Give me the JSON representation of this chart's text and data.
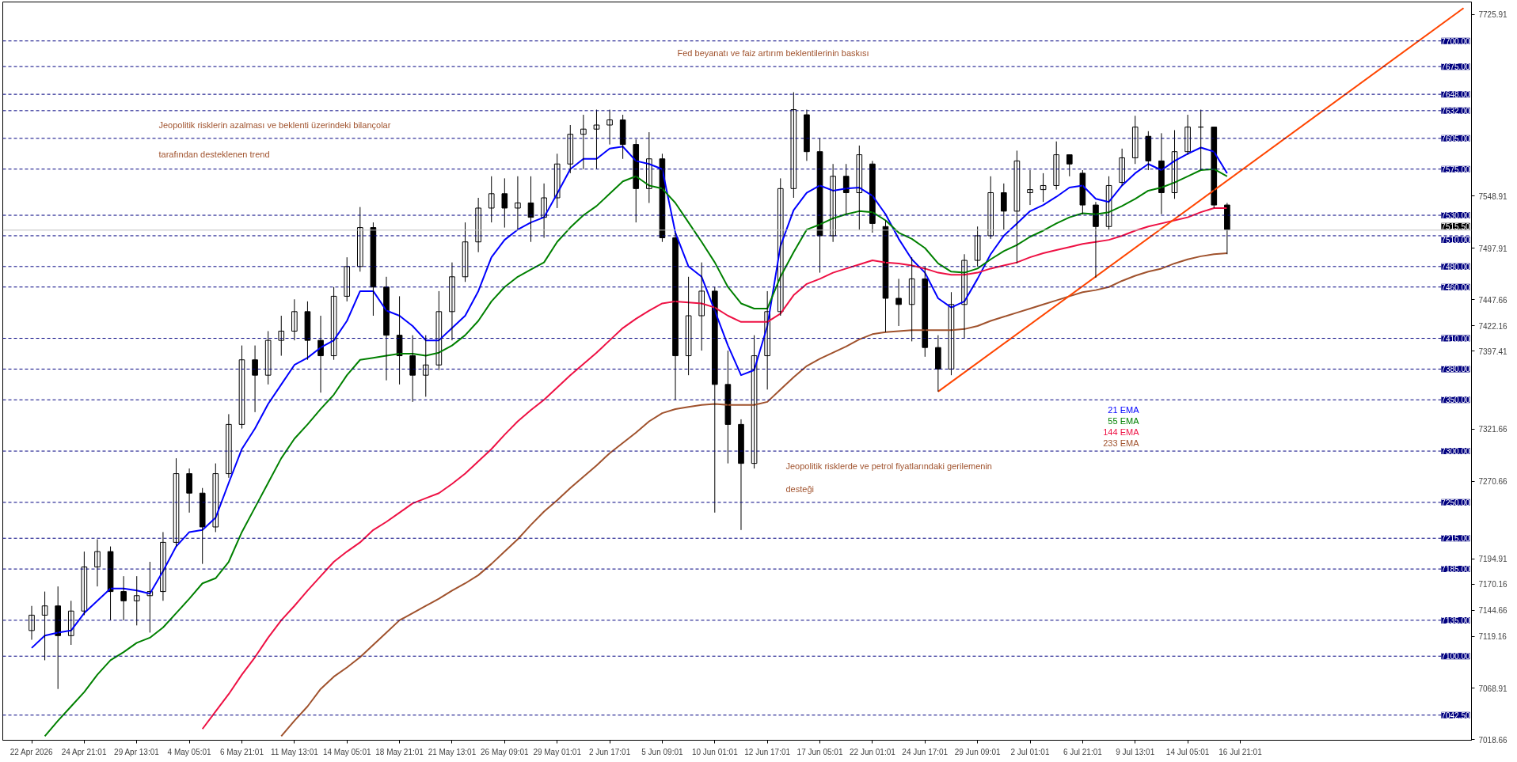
{
  "chart_data": {
    "type": "candlestick",
    "color": "#000000",
    "categories": [
      "22 Apr 2026",
      null,
      null,
      null,
      "24 Apr 21:01",
      null,
      null,
      null,
      "29 Apr 13:01",
      null,
      null,
      null,
      "4 May 05:01",
      null,
      null,
      null,
      "6 May 21:01",
      null,
      null,
      null,
      "11 May 13:01",
      null,
      null,
      null,
      "14 May 05:01",
      null,
      null,
      null,
      "18 May 21:01",
      null,
      null,
      null,
      "21 May 13:01",
      null,
      null,
      null,
      "26 May 09:01",
      null,
      null,
      null,
      "29 May 01:01",
      null,
      null,
      null,
      "2 Jun 17:01",
      null,
      null,
      null,
      "5 Jun 09:01",
      null,
      null,
      null,
      "10 Jun 01:01",
      null,
      null,
      null,
      "12 Jun 17:01",
      null,
      null,
      null,
      "17 Jun 05:01",
      null,
      null,
      null,
      "22 Jun 01:01",
      null,
      null,
      null,
      "24 Jun 17:01",
      null,
      null,
      null,
      "29 Jun 09:01",
      null,
      null,
      null,
      "2 Jul 01:01",
      null,
      null,
      null,
      "6 Jul 21:01",
      null,
      null,
      null,
      "9 Jul 13:01",
      null,
      null,
      null,
      "14 Jul 05:01",
      null,
      null,
      null,
      "16 Jul 21:01",
      null,
      null,
      null,
      null,
      null,
      null,
      null,
      null,
      null,
      null,
      null,
      null,
      null,
      null,
      null,
      null,
      null
    ],
    "ohlc": [
      [
        7125,
        7149,
        7116,
        7140
      ],
      [
        7140,
        7163,
        7096,
        7149
      ],
      [
        7149,
        7168,
        7068,
        7120
      ],
      [
        7120,
        7154,
        7111,
        7144
      ],
      [
        7144,
        7202,
        7140,
        7187
      ],
      [
        7187,
        7214,
        7168,
        7202
      ],
      [
        7202,
        7207,
        7135,
        7163
      ],
      [
        7163,
        7178,
        7135,
        7154
      ],
      [
        7154,
        7178,
        7130,
        7159
      ],
      [
        7159,
        7192,
        7123,
        7163
      ],
      [
        7163,
        7221,
        7154,
        7211
      ],
      [
        7211,
        7293,
        7207,
        7278
      ],
      [
        7278,
        7283,
        7240,
        7259
      ],
      [
        7259,
        7264,
        7190,
        7226
      ],
      [
        7226,
        7288,
        7221,
        7278
      ],
      [
        7278,
        7336,
        7274,
        7326
      ],
      [
        7326,
        7403,
        7322,
        7389
      ],
      [
        7389,
        7403,
        7338,
        7374
      ],
      [
        7374,
        7417,
        7365,
        7408
      ],
      [
        7408,
        7432,
        7393,
        7417
      ],
      [
        7417,
        7448,
        7408,
        7436
      ],
      [
        7436,
        7446,
        7389,
        7408
      ],
      [
        7408,
        7432,
        7357,
        7393
      ],
      [
        7393,
        7460,
        7389,
        7451
      ],
      [
        7451,
        7489,
        7446,
        7480
      ],
      [
        7480,
        7538,
        7475,
        7518
      ],
      [
        7518,
        7523,
        7432,
        7460
      ],
      [
        7460,
        7470,
        7369,
        7413
      ],
      [
        7413,
        7451,
        7365,
        7393
      ],
      [
        7393,
        7413,
        7348,
        7374
      ],
      [
        7374,
        7413,
        7353,
        7384
      ],
      [
        7384,
        7456,
        7379,
        7436
      ],
      [
        7436,
        7484,
        7408,
        7470
      ],
      [
        7470,
        7523,
        7465,
        7504
      ],
      [
        7504,
        7547,
        7494,
        7537
      ],
      [
        7537,
        7568,
        7523,
        7551
      ],
      [
        7551,
        7566,
        7518,
        7537
      ],
      [
        7537,
        7568,
        7516,
        7542
      ],
      [
        7542,
        7568,
        7504,
        7528
      ],
      [
        7528,
        7561,
        7508,
        7547
      ],
      [
        7547,
        7590,
        7537,
        7580
      ],
      [
        7580,
        7618,
        7571,
        7609
      ],
      [
        7609,
        7628,
        7575,
        7614
      ],
      [
        7614,
        7633,
        7575,
        7618
      ],
      [
        7618,
        7633,
        7599,
        7623
      ],
      [
        7623,
        7628,
        7585,
        7599
      ],
      [
        7599,
        7604,
        7523,
        7556
      ],
      [
        7556,
        7611,
        7542,
        7585
      ],
      [
        7585,
        7590,
        7504,
        7508
      ],
      [
        7508,
        7513,
        7350,
        7393
      ],
      [
        7393,
        7470,
        7374,
        7432
      ],
      [
        7432,
        7484,
        7398,
        7456
      ],
      [
        7456,
        7460,
        7240,
        7365
      ],
      [
        7365,
        7398,
        7288,
        7326
      ],
      [
        7326,
        7331,
        7223,
        7288
      ],
      [
        7288,
        7413,
        7283,
        7393
      ],
      [
        7393,
        7456,
        7360,
        7436
      ],
      [
        7436,
        7566,
        7432,
        7556
      ],
      [
        7556,
        7650,
        7547,
        7633
      ],
      [
        7628,
        7633,
        7583,
        7592
      ],
      [
        7592,
        7605,
        7474,
        7510
      ],
      [
        7510,
        7580,
        7504,
        7568
      ],
      [
        7568,
        7580,
        7531,
        7552
      ],
      [
        7552,
        7598,
        7516,
        7589
      ],
      [
        7580,
        7583,
        7513,
        7522
      ],
      [
        7519,
        7525,
        7416,
        7449
      ],
      [
        7449,
        7468,
        7422,
        7443
      ],
      [
        7443,
        7489,
        7407,
        7468
      ],
      [
        7468,
        7480,
        7392,
        7401
      ],
      [
        7401,
        7413,
        7358,
        7380
      ],
      [
        7380,
        7455,
        7374,
        7443
      ],
      [
        7443,
        7492,
        7410,
        7486
      ],
      [
        7486,
        7519,
        7480,
        7510
      ],
      [
        7510,
        7568,
        7507,
        7552
      ],
      [
        7552,
        7561,
        7516,
        7534
      ],
      [
        7534,
        7593,
        7483,
        7583
      ],
      [
        7552,
        7574,
        7540,
        7555
      ],
      [
        7555,
        7571,
        7543,
        7559
      ],
      [
        7559,
        7602,
        7555,
        7589
      ],
      [
        7589,
        7589,
        7568,
        7580
      ],
      [
        7571,
        7574,
        7531,
        7540
      ],
      [
        7540,
        7543,
        7469,
        7519
      ],
      [
        7519,
        7568,
        7516,
        7559
      ],
      [
        7562,
        7595,
        7559,
        7586
      ],
      [
        7586,
        7627,
        7580,
        7616
      ],
      [
        7607,
        7612,
        7574,
        7583
      ],
      [
        7583,
        7610,
        7531,
        7552
      ],
      [
        7552,
        7613,
        7546,
        7592
      ],
      [
        7592,
        7628,
        7589,
        7616
      ],
      [
        7616,
        7633,
        7574,
        7616
      ],
      [
        7616,
        7616,
        7537,
        7540
      ],
      [
        7540,
        7542,
        7492,
        7516
      ],
      null,
      null,
      null,
      null,
      null,
      null,
      null,
      null,
      null,
      null,
      null,
      null,
      null,
      null,
      null,
      null,
      null,
      null
    ],
    "series": [
      {
        "name": "21 EMA",
        "type": "line",
        "color": "#0000ff",
        "values": [
          7108,
          7120,
          7123,
          7125,
          7142,
          7154,
          7166,
          7166,
          7164,
          7161,
          7183,
          7207,
          7221,
          7223,
          7235,
          7269,
          7302,
          7322,
          7346,
          7365,
          7384,
          7391,
          7401,
          7408,
          7427,
          7456,
          7456,
          7437,
          7432,
          7422,
          7408,
          7408,
          7420,
          7432,
          7456,
          7489,
          7506,
          7516,
          7523,
          7528,
          7551,
          7575,
          7585,
          7585,
          7595,
          7597,
          7583,
          7580,
          7575,
          7513,
          7480,
          7470,
          7437,
          7403,
          7374,
          7379,
          7422,
          7500,
          7535,
          7552,
          7559,
          7554,
          7556,
          7557,
          7549,
          7531,
          7507,
          7487,
          7474,
          7449,
          7440,
          7446,
          7468,
          7492,
          7510,
          7522,
          7534,
          7540,
          7548,
          7557,
          7559,
          7546,
          7543,
          7559,
          7571,
          7580,
          7574,
          7583,
          7590,
          7596,
          7592,
          7571,
          null,
          null,
          null,
          null,
          null,
          null,
          null,
          null,
          null,
          null,
          null,
          null,
          null,
          null,
          null,
          null,
          null,
          null
        ]
      },
      {
        "name": "55 EMA",
        "type": "line",
        "color": "#008000",
        "values": [
          null,
          7022,
          7037,
          7051,
          7065,
          7082,
          7096,
          7104,
          7113,
          7118,
          7128,
          7142,
          7156,
          7171,
          7176,
          7192,
          7221,
          7245,
          7269,
          7293,
          7312,
          7326,
          7341,
          7355,
          7374,
          7389,
          7391,
          7393,
          7395,
          7395,
          7393,
          7396,
          7403,
          7413,
          7427,
          7446,
          7460,
          7470,
          7477,
          7484,
          7504,
          7518,
          7530,
          7539,
          7551,
          7563,
          7568,
          7559,
          7556,
          7542,
          7523,
          7504,
          7484,
          7460,
          7444,
          7439,
          7439,
          7470,
          7494,
          7516,
          7521,
          7527,
          7531,
          7534,
          7533,
          7525,
          7513,
          7507,
          7498,
          7483,
          7475,
          7474,
          7478,
          7487,
          7495,
          7501,
          7509,
          7515,
          7522,
          7528,
          7532,
          7531,
          7533,
          7539,
          7546,
          7554,
          7557,
          7562,
          7568,
          7574,
          7575,
          7568,
          null,
          null,
          null,
          null,
          null,
          null,
          null,
          null,
          null,
          null,
          null,
          null,
          null,
          null,
          null,
          null,
          null,
          null
        ]
      },
      {
        "name": "144 EMA",
        "type": "line",
        "color": "#ee1144",
        "values": [
          null,
          null,
          null,
          null,
          null,
          null,
          null,
          null,
          null,
          null,
          null,
          null,
          null,
          7029,
          7046,
          7063,
          7082,
          7099,
          7118,
          7135,
          7149,
          7164,
          7178,
          7192,
          7202,
          7211,
          7223,
          7231,
          7240,
          7249,
          7254,
          7259,
          7268,
          7278,
          7290,
          7302,
          7316,
          7329,
          7340,
          7350,
          7362,
          7374,
          7385,
          7396,
          7408,
          7420,
          7429,
          7437,
          7444,
          7446,
          7445,
          7444,
          7440,
          7432,
          7426,
          7426,
          7426,
          7434,
          7452,
          7463,
          7468,
          7474,
          7478,
          7482,
          7486,
          7484,
          7483,
          7481,
          7478,
          7474,
          7472,
          7472,
          7474,
          7478,
          7481,
          7484,
          7489,
          7493,
          7496,
          7499,
          7502,
          7504,
          7506,
          7510,
          7515,
          7519,
          7522,
          7525,
          7528,
          7533,
          7537,
          7537,
          null,
          null,
          null,
          null,
          null,
          null,
          null,
          null,
          null,
          null,
          null,
          null,
          null,
          null,
          null,
          null,
          null,
          null
        ]
      },
      {
        "name": "233 EMA",
        "type": "line",
        "color": "#a0522d",
        "values": [
          null,
          null,
          null,
          null,
          null,
          null,
          null,
          null,
          null,
          null,
          null,
          null,
          null,
          null,
          null,
          null,
          null,
          null,
          null,
          7022,
          7037,
          7051,
          7068,
          7080,
          7089,
          7099,
          7111,
          7123,
          7135,
          7142,
          7149,
          7156,
          7164,
          7171,
          7179,
          7190,
          7202,
          7214,
          7228,
          7241,
          7252,
          7264,
          7275,
          7286,
          7298,
          7308,
          7318,
          7329,
          7337,
          7341,
          7343,
          7345,
          7346,
          7345,
          7345,
          7345,
          7348,
          7360,
          7372,
          7383,
          7390,
          7396,
          7402,
          7409,
          7414,
          7416,
          7417,
          7418,
          7418,
          7418,
          7418,
          7419,
          7422,
          7427,
          7431,
          7435,
          7439,
          7443,
          7447,
          7451,
          7455,
          7457,
          7460,
          7466,
          7471,
          7475,
          7478,
          7483,
          7487,
          7490,
          7492,
          7493,
          null,
          null,
          null,
          null,
          null,
          null,
          null,
          null,
          null,
          null,
          null,
          null,
          null,
          null,
          null,
          null,
          null,
          null
        ]
      },
      {
        "type": "line",
        "color": "#ff4500",
        "values": [
          null,
          null,
          null,
          null,
          null,
          null,
          null,
          null,
          null,
          null,
          null,
          null,
          null,
          null,
          null,
          null,
          null,
          null,
          null,
          null,
          null,
          null,
          null,
          null,
          null,
          null,
          null,
          null,
          null,
          null,
          null,
          null,
          null,
          null,
          null,
          null,
          null,
          null,
          null,
          null,
          null,
          null,
          null,
          null,
          null,
          null,
          null,
          null,
          null,
          null,
          null,
          null,
          null,
          null,
          null,
          null,
          null,
          null,
          null,
          null,
          null,
          null,
          null,
          null,
          null,
          null,
          null,
          null,
          null,
          7358,
          null,
          null,
          null,
          null,
          null,
          null,
          null,
          null,
          null,
          null,
          null,
          null,
          null,
          null,
          null,
          null,
          null,
          null,
          null,
          null,
          null,
          null,
          null,
          null,
          null,
          null,
          null,
          null,
          null,
          null,
          null,
          null,
          null,
          null,
          null,
          null,
          null,
          null,
          null,
          7732
        ]
      }
    ],
    "ylim": [
      7018,
      7738
    ],
    "yticks": [
      7725.91,
      7548.91,
      7497.91,
      7447.66,
      7422.16,
      7397.41,
      7321.66,
      7270.66,
      7194.91,
      7170.16,
      7144.66,
      7119.16,
      7068.91,
      7018.66
    ],
    "ref_lines": [
      {
        "axis": "y",
        "value": 7700,
        "label": "7700.00",
        "color": "#000080",
        "line_style": "dashed"
      },
      {
        "axis": "y",
        "value": 7675,
        "label": "7675.00",
        "color": "#000080",
        "line_style": "dashed"
      },
      {
        "axis": "y",
        "value": 7648,
        "label": "7648.00",
        "color": "#000080",
        "line_style": "dashed"
      },
      {
        "axis": "y",
        "value": 7632,
        "label": "7632.00",
        "color": "#000080",
        "line_style": "dashed"
      },
      {
        "axis": "y",
        "value": 7605,
        "label": "7605.00",
        "color": "#000080",
        "line_style": "dashed"
      },
      {
        "axis": "y",
        "value": 7575,
        "label": "7575.00",
        "color": "#000080",
        "line_style": "dashed"
      },
      {
        "axis": "y",
        "value": 7530,
        "label": "7530.00",
        "color": "#000080",
        "line_style": "dashed"
      },
      {
        "axis": "y",
        "value": 7515.5,
        "label": "7515.50",
        "color": "#c0c0c0",
        "line_style": "solid"
      },
      {
        "axis": "y",
        "value": 7510,
        "label": "7510.00",
        "color": "#000080",
        "line_style": "dashed"
      },
      {
        "axis": "y",
        "value": 7480,
        "label": "7480.00",
        "color": "#000080",
        "line_style": "dashed"
      },
      {
        "axis": "y",
        "value": 7460,
        "label": "7460.00",
        "color": "#000080",
        "line_style": "dashed"
      },
      {
        "axis": "y",
        "value": 7410,
        "label": "7410.00",
        "color": "#000080",
        "line_style": "dashed"
      },
      {
        "axis": "y",
        "value": 7380,
        "label": "7380.00",
        "color": "#000080",
        "line_style": "dashed"
      },
      {
        "axis": "y",
        "value": 7350,
        "label": "7350.00",
        "color": "#000080",
        "line_style": "dashed"
      },
      {
        "axis": "y",
        "value": 7300,
        "label": "7300.00",
        "color": "#000080",
        "line_style": "dashed"
      },
      {
        "axis": "y",
        "value": 7250,
        "label": "7250.00",
        "color": "#000080",
        "line_style": "dashed"
      },
      {
        "axis": "y",
        "value": 7215,
        "label": "7215.00",
        "color": "#000080",
        "line_style": "dashed"
      },
      {
        "axis": "y",
        "value": 7185,
        "label": "7185.00",
        "color": "#000080",
        "line_style": "dashed"
      },
      {
        "axis": "y",
        "value": 7135,
        "label": "7135.00",
        "color": "#000080",
        "line_style": "dashed"
      },
      {
        "axis": "y",
        "value": 7100,
        "label": "7100.00",
        "color": "#000080",
        "line_style": "dashed"
      },
      {
        "axis": "y",
        "value": 7042.5,
        "label": "7042.50",
        "color": "#000080",
        "line_style": "dashed"
      }
    ],
    "annotations": [
      "Fed beyanatı ve faiz artırım beklentilerinin baskısı",
      "Jeopolitik risklerin azalması ve beklenti üzerindeki bilançolar",
      "tarafından desteklenen trend",
      "Jeopolitik risklerde ve petrol fiyatlarındaki gerilemenin",
      "desteği"
    ],
    "legend": "right"
  }
}
